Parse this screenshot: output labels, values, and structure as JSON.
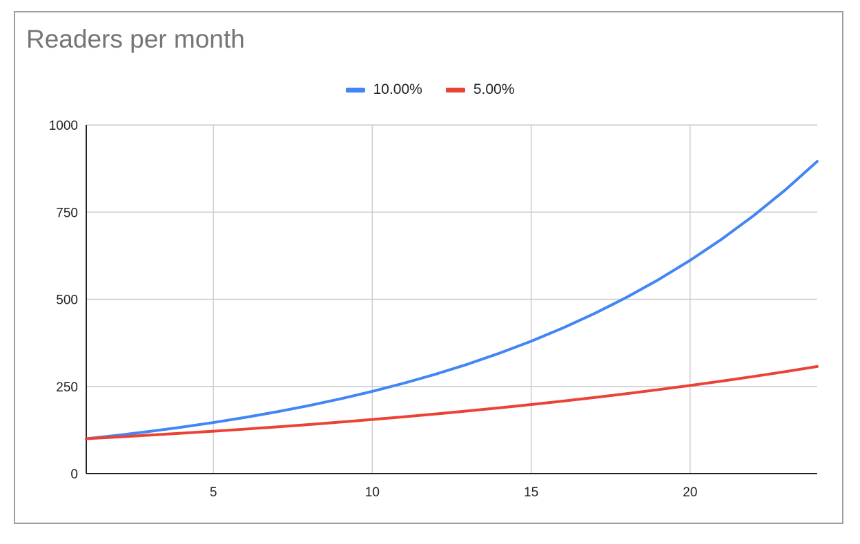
{
  "chart_data": {
    "type": "line",
    "title": "Readers per month",
    "xlabel": "",
    "ylabel": "",
    "xlim": [
      1,
      24
    ],
    "ylim": [
      0,
      1000
    ],
    "x_ticks": [
      5,
      10,
      15,
      20
    ],
    "y_ticks": [
      0,
      250,
      500,
      750,
      1000
    ],
    "grid": true,
    "legend": "top-center",
    "x": [
      1,
      2,
      3,
      4,
      5,
      6,
      7,
      8,
      9,
      10,
      11,
      12,
      13,
      14,
      15,
      16,
      17,
      18,
      19,
      20,
      21,
      22,
      23,
      24
    ],
    "series": [
      {
        "name": "10.00%",
        "color": "#4285f4",
        "values": [
          100,
          110,
          121,
          133.1,
          146.4,
          161.1,
          177.2,
          194.9,
          214.4,
          235.8,
          259.4,
          285.3,
          313.8,
          345.2,
          379.7,
          417.7,
          459.5,
          505.4,
          556,
          611.6,
          672.7,
          740,
          814,
          895.4
        ]
      },
      {
        "name": "5.00%",
        "color": "#ea4335",
        "values": [
          100,
          105,
          110.3,
          115.8,
          121.6,
          127.6,
          134,
          140.7,
          147.7,
          155.1,
          162.9,
          171,
          179.6,
          188.6,
          198,
          207.9,
          218.3,
          229.2,
          240.7,
          252.7,
          265.3,
          278.6,
          292.5,
          307.1
        ]
      }
    ]
  }
}
